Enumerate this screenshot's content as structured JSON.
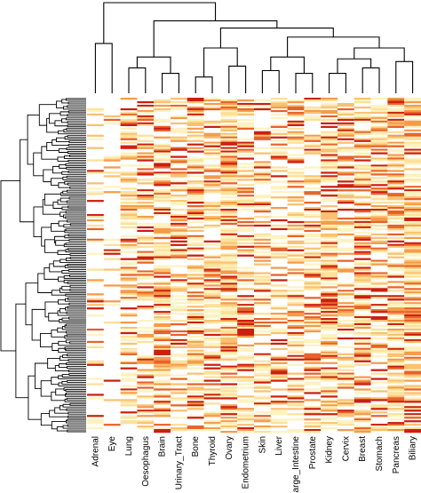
{
  "chart_data": {
    "type": "heatmap",
    "title": "",
    "xlabel": "",
    "ylabel": "",
    "columns": [
      "Adrenal",
      "Eye",
      "Lung",
      "Oesophagus",
      "Brain",
      "Urinary_Tract",
      "Bone",
      "Thyroid",
      "Ovary",
      "Endometrium",
      "Skin",
      "Liver",
      "Large_Intestine",
      "Prostate",
      "Kidney",
      "Cervix",
      "Breast",
      "Stomach",
      "Pancreas",
      "Biliary"
    ],
    "row_count": 190,
    "value_range": [
      0,
      1
    ],
    "color_scale": [
      "#ffffff",
      "#fff2c0",
      "#fde09a",
      "#fbc070",
      "#f59a4a",
      "#e8612a",
      "#c91f0f"
    ],
    "column_density": [
      0.25,
      0.1,
      0.5,
      0.55,
      0.7,
      0.55,
      0.6,
      0.5,
      0.85,
      0.55,
      0.45,
      0.5,
      0.55,
      0.55,
      0.75,
      0.6,
      0.65,
      0.6,
      0.75,
      0.8
    ],
    "column_dendrogram": "top",
    "row_dendrogram": "left",
    "legend": "none",
    "grid": false
  }
}
